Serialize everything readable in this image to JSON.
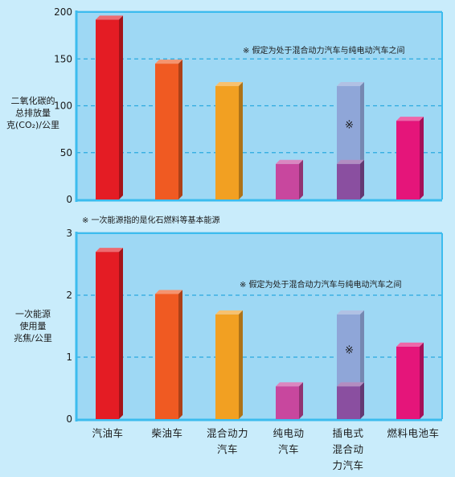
{
  "top_ylabel_lines": [
    "二氧化碳的",
    "总排放量",
    "克(CO₂)/公里"
  ],
  "bottom_ylabel_lines": [
    "一次能源",
    "使用量",
    "兆焦/公里"
  ],
  "top_note": "※ 假定为处于混合动力汽车与纯电动汽车之间",
  "bottom_note": "※ 假定为处于混合动力汽车与纯电动汽车之间",
  "middle_note": "※  一次能源指的是化石燃料等基本能源",
  "range_marker": "※",
  "x_labels": [
    "汽油车",
    "柴油车",
    "混合动力\n汽车",
    "纯电动\n汽车",
    "插电式\n混合动\n力汽车",
    "燃料电池车"
  ],
  "colors": {
    "background": "#c9ecfb",
    "plot": "#9ed8f4",
    "axis": "#3cbcee",
    "grid": "#2aa9df",
    "range": "#8fa6d8",
    "bars": [
      "#e41c24",
      "#f05a22",
      "#f2a022",
      "#c8479e",
      "#8a4fa0",
      "#e5157a"
    ]
  },
  "chart_data": [
    {
      "type": "bar",
      "title": "",
      "ylabel": "二氧化碳的总排放量 克(CO₂)/公里",
      "categories": [
        "汽油车",
        "柴油车",
        "混合动力汽车",
        "纯电动汽车",
        "插电式混合动力汽车",
        "燃料电池车"
      ],
      "values": [
        192,
        145,
        121,
        38,
        38,
        84
      ],
      "range": {
        "category": "插电式混合动力汽车",
        "low": 38,
        "high": 121
      },
      "ylim": [
        0,
        200
      ],
      "yticks": [
        0,
        50,
        100,
        150,
        200
      ],
      "grid": true
    },
    {
      "type": "bar",
      "title": "",
      "ylabel": "一次能源使用量 兆焦/公里",
      "categories": [
        "汽油车",
        "柴油车",
        "混合动力汽车",
        "纯电动汽车",
        "插电式混合动力汽车",
        "燃料电池车"
      ],
      "values": [
        2.7,
        2.02,
        1.69,
        0.53,
        0.53,
        1.17
      ],
      "range": {
        "category": "插电式混合动力汽车",
        "low": 0.53,
        "high": 1.69
      },
      "ylim": [
        0,
        3
      ],
      "yticks": [
        0,
        1,
        2,
        3
      ],
      "grid": true
    }
  ]
}
